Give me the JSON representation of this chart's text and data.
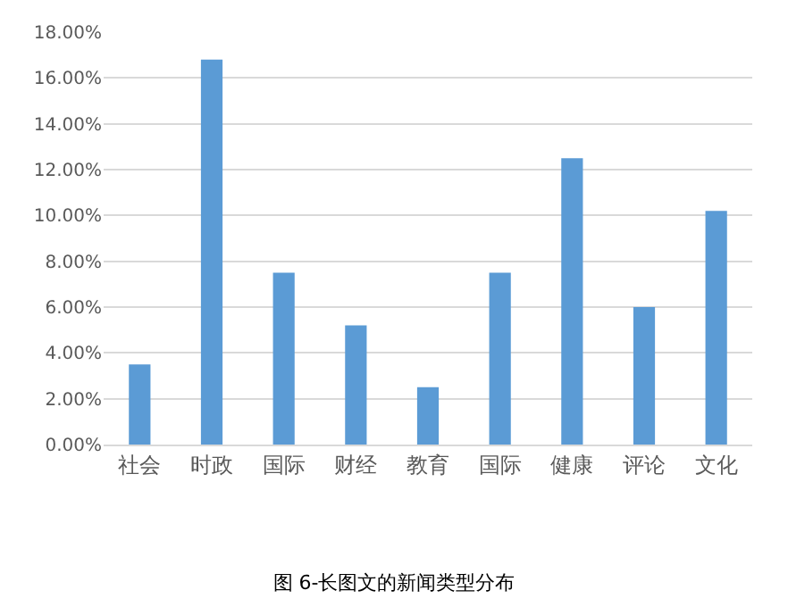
{
  "chart_data": {
    "type": "bar",
    "title": "图 6-长图文的新闻类型分布",
    "categories": [
      "社会",
      "时政",
      "国际",
      "财经",
      "教育",
      "国际",
      "健康",
      "评论",
      "文化"
    ],
    "values": [
      3.5,
      16.8,
      7.5,
      5.2,
      2.5,
      7.5,
      12.5,
      6.0,
      10.2
    ],
    "color": "#5b9bd5",
    "ylim": [
      0,
      18
    ],
    "yticks": [
      {
        "value": 0,
        "label": "0.00%"
      },
      {
        "value": 2,
        "label": "2.00%"
      },
      {
        "value": 4,
        "label": "4.00%"
      },
      {
        "value": 6,
        "label": "6.00%"
      },
      {
        "value": 8,
        "label": "8.00%"
      },
      {
        "value": 10,
        "label": "10.00%"
      },
      {
        "value": 12,
        "label": "12.00%"
      },
      {
        "value": 14,
        "label": "14.00%"
      },
      {
        "value": 16,
        "label": "16.00%"
      },
      {
        "value": 18,
        "label": "18.00%"
      }
    ],
    "grid": "y"
  }
}
